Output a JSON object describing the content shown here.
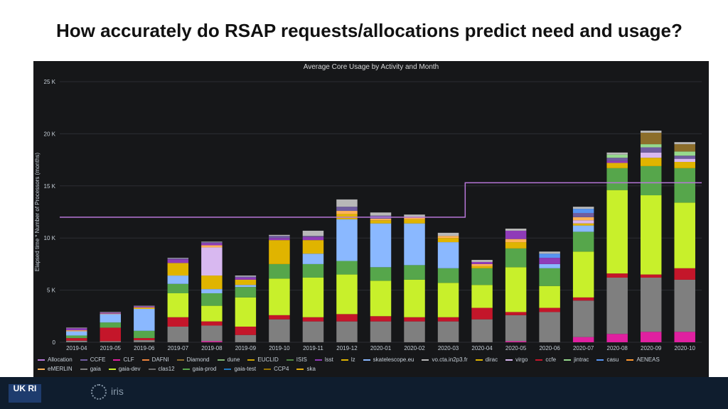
{
  "slide": {
    "title": "How accurately do RSAP requests/allocations predict need and usage?"
  },
  "logos": {
    "ukri": "UK RI",
    "iris": "iris"
  },
  "colors": {
    "panel_bg": "#161719",
    "grid": "#2c2e33",
    "axis_text": "#c7d0d9",
    "allocation": "#b877d9"
  },
  "chart_data": {
    "type": "bar",
    "stacked": true,
    "title": "Average Core Usage by Activity and Month",
    "ylabel": "Elapsed time * Number of Processors (months)",
    "xlabel": "",
    "ylim": [
      0,
      25000
    ],
    "yticks": [
      0,
      5000,
      10000,
      15000,
      20000,
      25000
    ],
    "ytick_labels": [
      "0",
      "5 K",
      "10 K",
      "15 K",
      "20 K",
      "25 K"
    ],
    "grid": true,
    "legend_position": "bottom",
    "categories": [
      "2019-04",
      "2019-05",
      "2019-06",
      "2019-07",
      "2019-08",
      "2019-09",
      "2019-10",
      "2019-11",
      "2019-12",
      "2020-01",
      "2020-02",
      "2020-03",
      "2020-04",
      "2020-05",
      "2020-06",
      "2020-07",
      "2020-08",
      "2020-09",
      "2020-10"
    ],
    "series": [
      {
        "name": "CLF",
        "color": "#e020a0",
        "values": [
          0,
          0,
          0,
          0,
          100,
          0,
          0,
          0,
          0,
          0,
          0,
          0,
          0,
          100,
          0,
          500,
          800,
          1000,
          1000
        ]
      },
      {
        "name": "gaia",
        "color": "#7f7f7f",
        "values": [
          150,
          100,
          200,
          1500,
          1500,
          700,
          2200,
          2000,
          2000,
          2000,
          2000,
          2000,
          2200,
          2500,
          2900,
          3500,
          5400,
          5200,
          5000
        ]
      },
      {
        "name": "ccfe",
        "color": "#c4162a",
        "values": [
          250,
          1300,
          200,
          900,
          400,
          800,
          400,
          400,
          700,
          500,
          400,
          400,
          1100,
          300,
          400,
          300,
          400,
          300,
          1100
        ]
      },
      {
        "name": "gaia-dev",
        "color": "#c8f02b",
        "values": [
          0,
          0,
          0,
          2300,
          1500,
          2800,
          3500,
          3800,
          3800,
          3400,
          3600,
          3300,
          2200,
          4300,
          2100,
          4400,
          8000,
          7600,
          6300
        ]
      },
      {
        "name": "gaia-prod",
        "color": "#56a64b",
        "values": [
          250,
          500,
          700,
          900,
          1200,
          1000,
          1400,
          1300,
          1300,
          1300,
          1400,
          1400,
          1600,
          1800,
          1700,
          1900,
          2100,
          2800,
          3300
        ]
      },
      {
        "name": "skatelescope.eu",
        "color": "#8ab8ff",
        "values": [
          400,
          800,
          2100,
          800,
          400,
          200,
          0,
          1000,
          4000,
          4200,
          4000,
          2500,
          0,
          0,
          400,
          600,
          0,
          0,
          0
        ]
      },
      {
        "name": "dirac",
        "color": "#e0b400",
        "values": [
          0,
          0,
          100,
          1200,
          1300,
          500,
          2300,
          1300,
          500,
          300,
          400,
          400,
          200,
          600,
          0,
          200,
          500,
          800,
          600
        ]
      },
      {
        "name": "virgo",
        "color": "#d8b8f0",
        "values": [
          0,
          0,
          0,
          0,
          2700,
          0,
          0,
          0,
          0,
          0,
          0,
          0,
          0,
          0,
          0,
          300,
          0,
          500,
          300
        ]
      },
      {
        "name": "eMERLIN",
        "color": "#ffb357",
        "values": [
          100,
          50,
          50,
          0,
          200,
          0,
          0,
          0,
          300,
          150,
          150,
          200,
          200,
          300,
          0,
          300,
          0,
          0,
          0
        ]
      },
      {
        "name": "lsst",
        "color": "#8f3bb8",
        "values": [
          200,
          100,
          100,
          350,
          200,
          200,
          200,
          300,
          0,
          0,
          0,
          0,
          200,
          800,
          600,
          0,
          200,
          0,
          0
        ]
      },
      {
        "name": "CCFE",
        "color": "#705da0",
        "values": [
          0,
          0,
          0,
          100,
          100,
          100,
          200,
          100,
          400,
          300,
          0,
          0,
          0,
          0,
          0,
          400,
          300,
          500,
          300
        ]
      },
      {
        "name": "jintrac",
        "color": "#96d98d",
        "values": [
          0,
          0,
          0,
          0,
          0,
          0,
          0,
          0,
          0,
          0,
          0,
          0,
          0,
          0,
          0,
          0,
          300,
          300,
          400
        ]
      },
      {
        "name": "Diamond",
        "color": "#8c6e2b",
        "values": [
          0,
          0,
          0,
          0,
          0,
          0,
          0,
          0,
          0,
          0,
          0,
          0,
          0,
          0,
          0,
          0,
          0,
          1100,
          700
        ]
      },
      {
        "name": "casu",
        "color": "#5794f2",
        "values": [
          0,
          0,
          0,
          0,
          0,
          0,
          0,
          0,
          0,
          0,
          0,
          0,
          0,
          0,
          400,
          400,
          0,
          0,
          0
        ]
      },
      {
        "name": "vo.cta.in2p3.fr",
        "color": "#b8b8b8",
        "values": [
          50,
          50,
          50,
          50,
          50,
          100,
          100,
          500,
          700,
          300,
          300,
          300,
          200,
          200,
          200,
          200,
          200,
          200,
          200
        ]
      }
    ],
    "allocation": {
      "name": "Allocation",
      "color": "#b877d9",
      "values": [
        12000,
        12000,
        12000,
        12000,
        12000,
        12000,
        12000,
        12000,
        12000,
        12000,
        12000,
        12000,
        15300,
        15300,
        15300,
        15300,
        15300,
        15300,
        15300
      ]
    },
    "legend": [
      {
        "name": "Allocation",
        "color": "#b877d9"
      },
      {
        "name": "CCFE",
        "color": "#705da0"
      },
      {
        "name": "CLF",
        "color": "#e020a0"
      },
      {
        "name": "DAFNI",
        "color": "#ef843c"
      },
      {
        "name": "Diamond",
        "color": "#8c6e2b"
      },
      {
        "name": "dune",
        "color": "#7eb26d"
      },
      {
        "name": "EUCLID",
        "color": "#cca300"
      },
      {
        "name": "ISIS",
        "color": "#508642"
      },
      {
        "name": "lsst",
        "color": "#8f3bb8"
      },
      {
        "name": "lz",
        "color": "#e0b400"
      },
      {
        "name": "skatelescope.eu",
        "color": "#8ab8ff"
      },
      {
        "name": "vo.cta.in2p3.fr",
        "color": "#b8b8b8"
      },
      {
        "name": "dirac",
        "color": "#e0b400"
      },
      {
        "name": "virgo",
        "color": "#d8b8f0"
      },
      {
        "name": "ccfe",
        "color": "#c4162a"
      },
      {
        "name": "jintrac",
        "color": "#96d98d"
      },
      {
        "name": "casu",
        "color": "#5794f2"
      },
      {
        "name": "AENEAS",
        "color": "#ff9830"
      },
      {
        "name": "eMERLIN",
        "color": "#ffb357"
      },
      {
        "name": "gaia",
        "color": "#7f7f7f"
      },
      {
        "name": "gaia-dev",
        "color": "#c8f02b"
      },
      {
        "name": "clas12",
        "color": "#6e6e6e"
      },
      {
        "name": "gaia-prod",
        "color": "#56a64b"
      },
      {
        "name": "gaia-test",
        "color": "#1f78c1"
      },
      {
        "name": "CCP4",
        "color": "#967302"
      },
      {
        "name": "ska",
        "color": "#e5ac0e"
      }
    ]
  }
}
